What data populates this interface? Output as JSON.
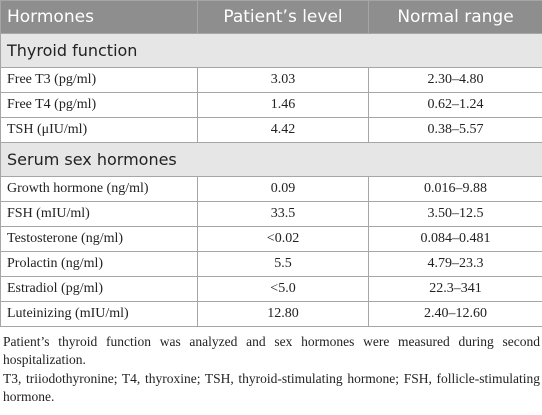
{
  "table": {
    "header": [
      "Hormones",
      "Patient’s level",
      "Normal range"
    ],
    "sections": [
      {
        "title": "Thyroid function",
        "rows": [
          [
            "Free T3 (pg/ml)",
            "3.03",
            "2.30–4.80"
          ],
          [
            "Free T4 (pg/ml)",
            "1.46",
            "0.62–1.24"
          ],
          [
            "TSH (μIU/ml)",
            "4.42",
            "0.38–5.57"
          ]
        ]
      },
      {
        "title": "Serum sex hormones",
        "rows": [
          [
            "Growth hormone (ng/ml)",
            "0.09",
            "0.016–9.88"
          ],
          [
            "FSH (mIU/ml)",
            "33.5",
            "3.50–12.5"
          ],
          [
            "Testosterone (ng/ml)",
            "<0.02",
            "0.084–0.481"
          ],
          [
            "Prolactin (ng/ml)",
            "5.5",
            "4.79–23.3"
          ],
          [
            "Estradiol (pg/ml)",
            "<5.0",
            "22.3–341"
          ],
          [
            "Luteinizing (mIU/ml)",
            "12.80",
            "2.40–12.60"
          ]
        ]
      }
    ],
    "footnotes": [
      "Patient’s thyroid function was analyzed and sex hormones were measured during second hospitalization.",
      "T3, triiodothyronine; T4, thyroxine; TSH, thyroid-stimulating hormone; FSH, follicle-stimulating hormone."
    ]
  }
}
